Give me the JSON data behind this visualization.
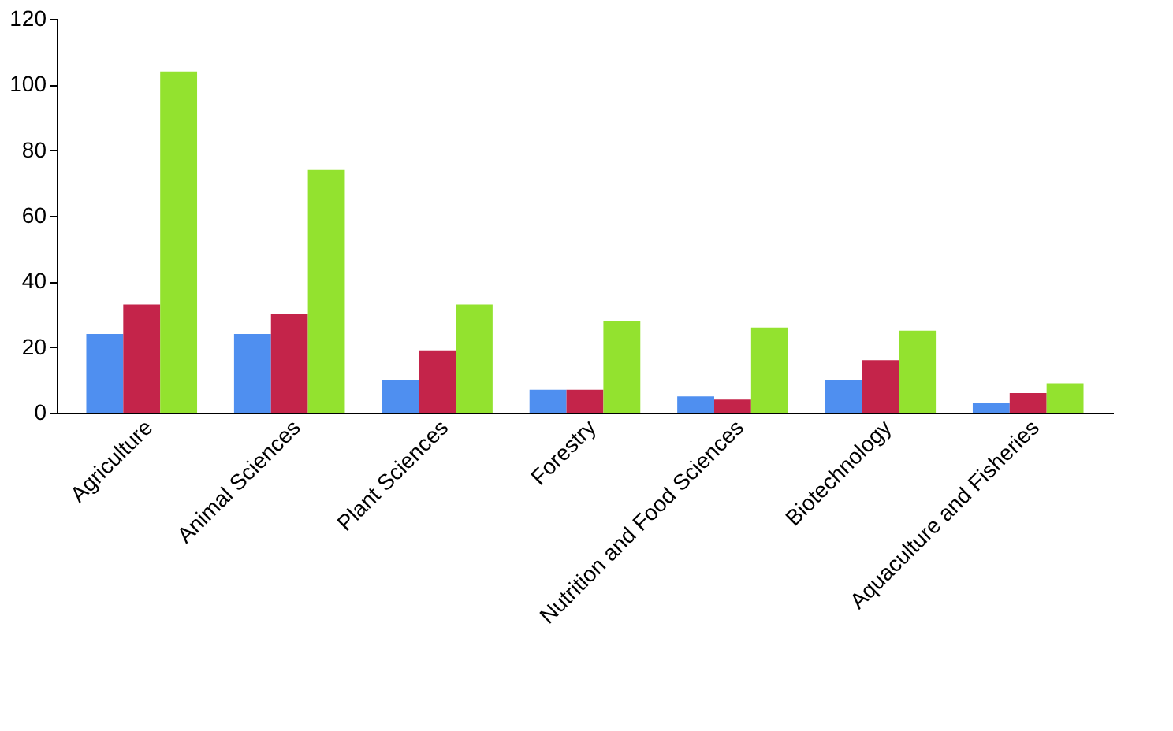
{
  "chart_data": {
    "type": "bar",
    "categories": [
      "Agriculture",
      "Animal Sciences",
      "Plant Sciences",
      "Forestry",
      "Nutrition and Food Sciences",
      "Biotechnology",
      "Aquaculture and Fisheries"
    ],
    "series": [
      {
        "color": "#4f8ff0",
        "values": [
          24,
          24,
          10,
          7,
          5,
          10,
          3
        ]
      },
      {
        "color": "#c4244a",
        "values": [
          33,
          30,
          19,
          7,
          4,
          16,
          6
        ]
      },
      {
        "color": "#93e22f",
        "values": [
          104,
          74,
          33,
          28,
          26,
          25,
          9
        ]
      }
    ],
    "ylim": [
      0,
      120
    ],
    "yticks": [
      0,
      20,
      40,
      60,
      80,
      100,
      120
    ],
    "grid": false
  }
}
